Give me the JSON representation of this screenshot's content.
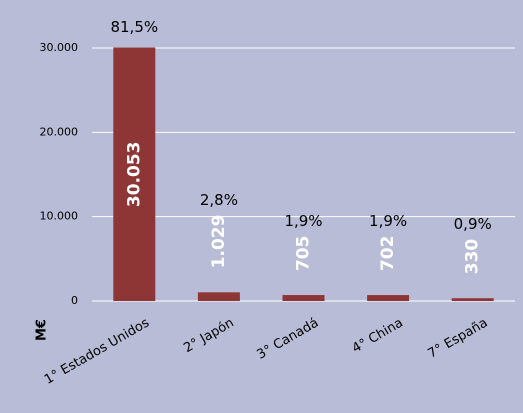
{
  "chart_data": {
    "type": "bar",
    "categories": [
      "1° Estados Unidos",
      "2° Japón",
      "3° Canadá",
      "4° China",
      "7° España"
    ],
    "values": [
      30053,
      1029,
      705,
      702,
      330
    ],
    "value_labels": [
      "30.053",
      "1.029",
      "705",
      "702",
      "330"
    ],
    "annotations": [
      "81,5%",
      "2,8%",
      "1,9%",
      "1,9%",
      "0,9%"
    ],
    "ylabel": "M€",
    "color": "#8e3535",
    "ylim": [
      0,
      30000
    ],
    "yticks": [
      0,
      {
        "value": 10000,
        "label": "10.000"
      },
      {
        "value": 20000,
        "label": "20.000"
      },
      {
        "value": 30000,
        "label": "30.000"
      }
    ],
    "grid": true
  }
}
